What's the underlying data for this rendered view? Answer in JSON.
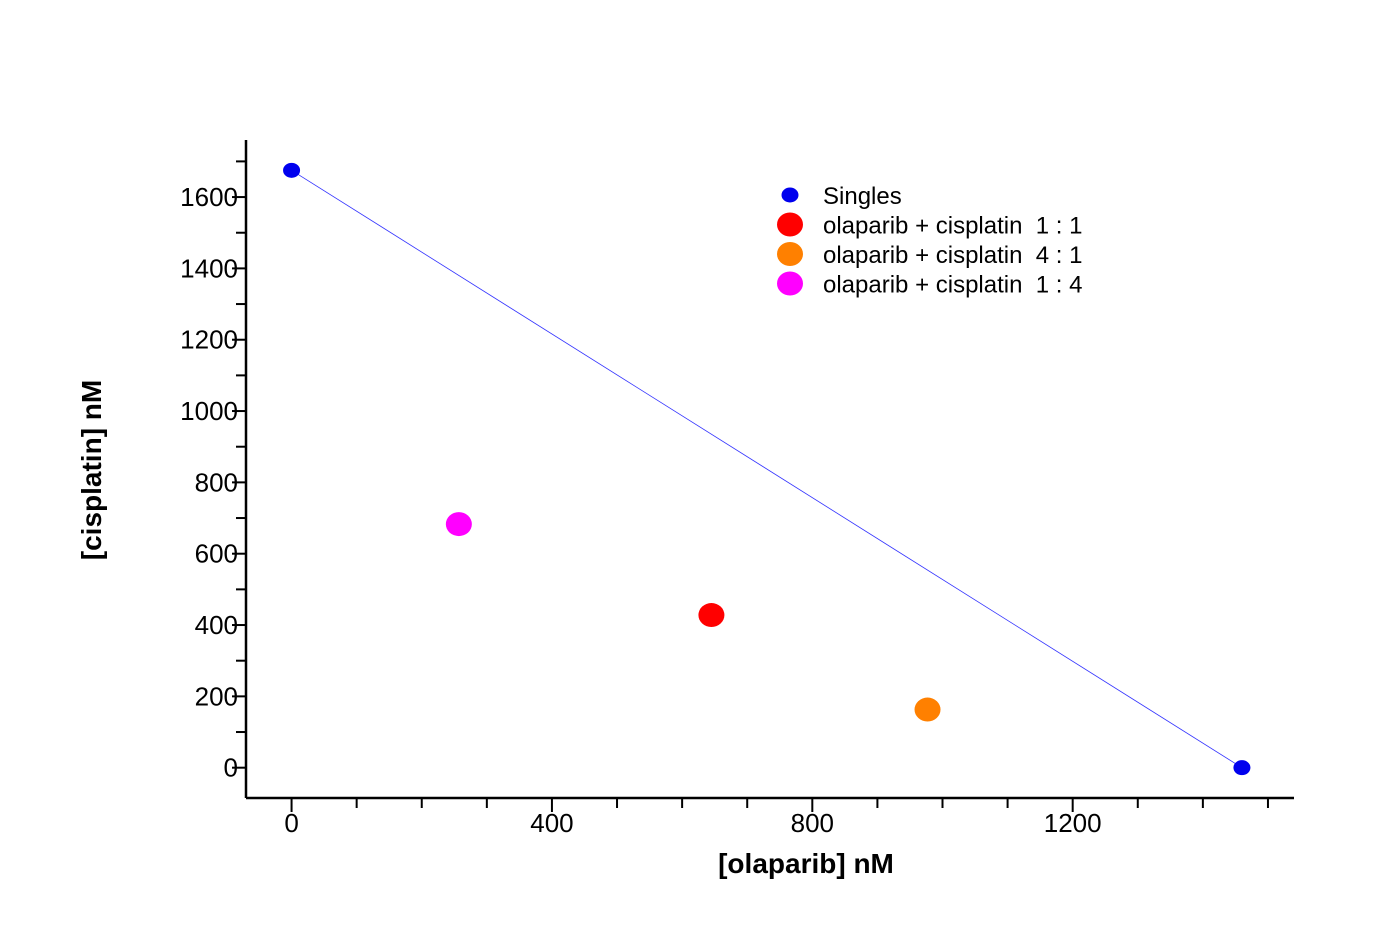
{
  "chart_data": {
    "type": "scatter",
    "xlabel": "[olaparib] nM",
    "ylabel": "[cisplatin]  nM",
    "xlim": [
      -70,
      1540
    ],
    "ylim": [
      -85,
      1760
    ],
    "x_ticks": [
      0,
      400,
      800,
      1200
    ],
    "x_minor_step": 100,
    "y_ticks": [
      0,
      200,
      400,
      600,
      800,
      1000,
      1200,
      1400,
      1600
    ],
    "y_minor_step": 100,
    "legend_position": "top-center",
    "grid": false,
    "isobologram_line": {
      "from": [
        0,
        1675
      ],
      "to": [
        1460,
        0
      ],
      "color": "#3333ff"
    },
    "series": [
      {
        "name": "Singles",
        "color": "#0000ee",
        "marker": "small",
        "points": [
          [
            0,
            1675
          ],
          [
            1460,
            0
          ]
        ]
      },
      {
        "name": "olaparib + cisplatin  1 : 1",
        "color": "#ff0000",
        "marker": "large",
        "points": [
          [
            645,
            428
          ]
        ]
      },
      {
        "name": "olaparib + cisplatin  4 : 1",
        "color": "#ff8000",
        "marker": "large",
        "points": [
          [
            977,
            163
          ]
        ]
      },
      {
        "name": "olaparib + cisplatin  1 : 4",
        "color": "#ff00ff",
        "marker": "large",
        "points": [
          [
            257,
            683
          ]
        ]
      }
    ]
  }
}
